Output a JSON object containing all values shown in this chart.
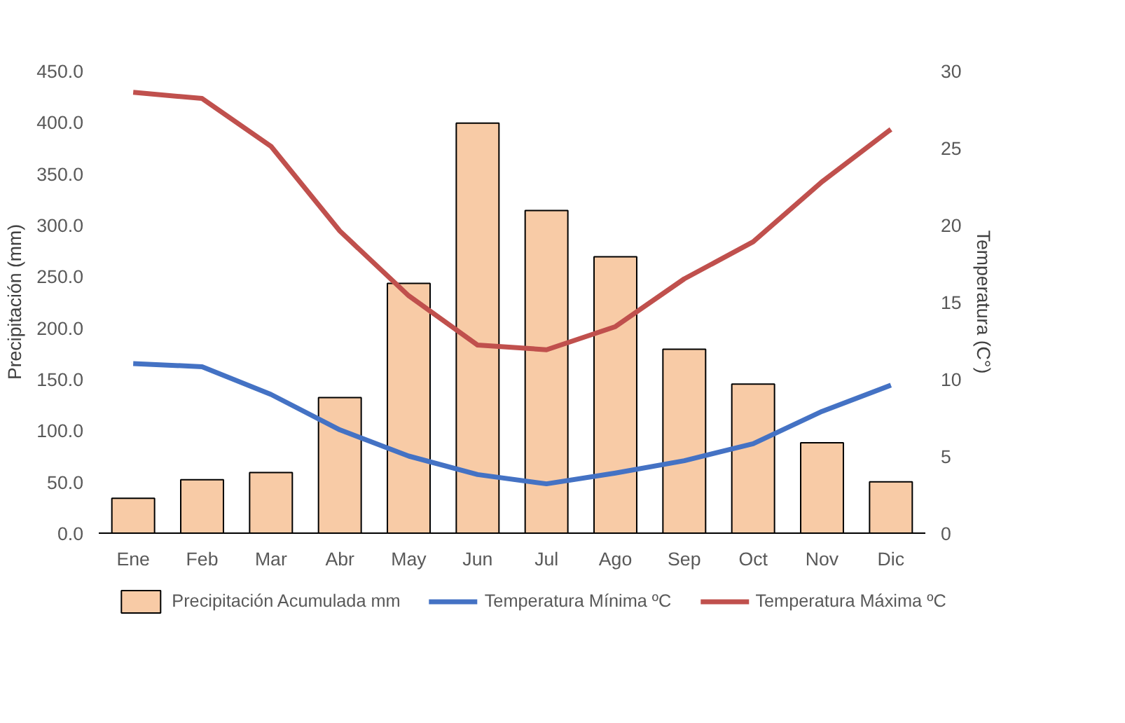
{
  "chart_data": {
    "type": "bar",
    "ylabel": "Precipitación (mm)",
    "y2label": "Temperatura (C°)",
    "categories": [
      "Ene",
      "Feb",
      "Mar",
      "Abr",
      "May",
      "Jun",
      "Jul",
      "Ago",
      "Sep",
      "Oct",
      "Nov",
      "Dic"
    ],
    "series": [
      {
        "name": "Precipitación Acumulada mm",
        "type": "bar",
        "color": "#f8cba6",
        "values": [
          34,
          52,
          59,
          132,
          243,
          399,
          314,
          269,
          179,
          145,
          88,
          50
        ]
      },
      {
        "name": "Temperatura Mínima ºC",
        "type": "line",
        "axis": "y2",
        "color": "#4472c4",
        "values": [
          11.0,
          10.8,
          9.0,
          6.7,
          5.0,
          3.8,
          3.2,
          3.9,
          4.7,
          5.8,
          7.9,
          9.6
        ]
      },
      {
        "name": "Temperatura Máxima ºC",
        "type": "line",
        "axis": "y2",
        "color": "#c0504d",
        "values": [
          28.6,
          28.2,
          25.1,
          19.6,
          15.4,
          12.2,
          11.9,
          13.4,
          16.5,
          18.9,
          22.8,
          26.2
        ]
      }
    ],
    "ylim": [
      0,
      450
    ],
    "yticks": [
      {
        "value": 0,
        "label": "0.0"
      },
      {
        "value": 50,
        "label": "50.0"
      },
      {
        "value": 100,
        "label": "100.0"
      },
      {
        "value": 150,
        "label": "150.0"
      },
      {
        "value": 200,
        "label": "200.0"
      },
      {
        "value": 250,
        "label": "250.0"
      },
      {
        "value": 300,
        "label": "300.0"
      },
      {
        "value": 350,
        "label": "350.0"
      },
      {
        "value": 400,
        "label": "400.0"
      },
      {
        "value": 450,
        "label": "450.0"
      }
    ],
    "y2lim": [
      0,
      30
    ],
    "y2ticks": [
      0,
      5,
      10,
      15,
      20,
      25,
      30
    ],
    "grid": false,
    "legend": "bottom",
    "marker": "none",
    "line_style": "solid"
  }
}
